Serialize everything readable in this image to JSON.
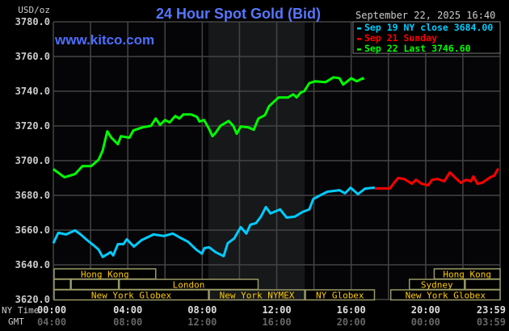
{
  "header": {
    "title": "24 Hour Spot Gold (Bid)",
    "watermark": "www.kitco.com",
    "unit": "USD/oz",
    "timestamp": "September 22, 2025 16:40"
  },
  "legend": [
    {
      "label": "Sep 19 NY close 3684.00",
      "color": "#00ccff"
    },
    {
      "label": "Sep 21 Sunday",
      "color": "#ff0000"
    },
    {
      "label": "Sep 22 Last 3746.60",
      "color": "#00ff00"
    }
  ],
  "colors": {
    "title": "#5577ff",
    "session_text": "#ffcc00",
    "session_border": "#999966",
    "grid": "#444444",
    "shade": "#16181a"
  },
  "chart_data": {
    "type": "line",
    "title": "24 Hour Spot Gold (Bid)",
    "ylabel": "USD/oz",
    "ylim": [
      3620,
      3780
    ],
    "yticks": [
      "3780.0",
      "3760.0",
      "3740.0",
      "3720.0",
      "3700.0",
      "3680.0",
      "3660.0",
      "3640.0",
      "3620.0"
    ],
    "xlim": [
      "00:00",
      "24:00"
    ],
    "grid": true,
    "legend_position": "top-right",
    "shaded_period": [
      "08:20",
      "13:30"
    ],
    "x_row_labels": {
      "ny": "NY Time",
      "gmt": "GMT"
    },
    "xticks": [
      {
        "ny": "00:00",
        "gmt": "04:00"
      },
      {
        "ny": "04:00",
        "gmt": "08:00"
      },
      {
        "ny": "08:00",
        "gmt": "12:00"
      },
      {
        "ny": "12:00",
        "gmt": "16:00"
      },
      {
        "ny": "16:00",
        "gmt": "20:00"
      },
      {
        "ny": "20:00",
        "gmt": "00:00"
      },
      {
        "ny": "23:59",
        "gmt": "03:59"
      }
    ],
    "series": [
      {
        "name": "Sep 19 NY close 3684.00",
        "color": "#00ccff",
        "points": [
          [
            "00:00",
            3652.4
          ],
          [
            "00:16",
            3658.4
          ],
          [
            "00:41",
            3657.5
          ],
          [
            "01:10",
            3659.8
          ],
          [
            "01:28",
            3657.5
          ],
          [
            "01:49",
            3654.2
          ],
          [
            "02:08",
            3651.5
          ],
          [
            "02:26",
            3648.7
          ],
          [
            "02:39",
            3644.5
          ],
          [
            "03:05",
            3647.3
          ],
          [
            "03:13",
            3645.4
          ],
          [
            "03:28",
            3651.9
          ],
          [
            "03:46",
            3651.9
          ],
          [
            "03:57",
            3654.7
          ],
          [
            "04:20",
            3650.5
          ],
          [
            "04:44",
            3654.2
          ],
          [
            "05:23",
            3657.5
          ],
          [
            "05:56",
            3656.6
          ],
          [
            "06:25",
            3658.0
          ],
          [
            "06:49",
            3655.6
          ],
          [
            "07:14",
            3653.3
          ],
          [
            "07:41",
            3648.7
          ],
          [
            "07:59",
            3646.4
          ],
          [
            "08:07",
            3649.6
          ],
          [
            "08:22",
            3650.1
          ],
          [
            "08:43",
            3647.3
          ],
          [
            "09:09",
            3645.0
          ],
          [
            "09:22",
            3652.4
          ],
          [
            "09:43",
            3655.2
          ],
          [
            "10:04",
            3661.7
          ],
          [
            "10:22",
            3658.0
          ],
          [
            "10:35",
            3663.1
          ],
          [
            "10:53",
            3664.0
          ],
          [
            "11:09",
            3667.7
          ],
          [
            "11:25",
            3673.3
          ],
          [
            "11:40",
            3669.6
          ],
          [
            "12:11",
            3671.9
          ],
          [
            "12:32",
            3667.2
          ],
          [
            "12:58",
            3667.7
          ],
          [
            "13:24",
            3670.5
          ],
          [
            "13:45",
            3671.9
          ],
          [
            "13:58",
            3677.9
          ],
          [
            "14:22",
            3680.2
          ],
          [
            "14:43",
            3682.1
          ],
          [
            "15:22",
            3683.0
          ],
          [
            "15:40",
            3681.2
          ],
          [
            "15:58",
            3684.4
          ],
          [
            "16:22",
            3680.7
          ],
          [
            "16:45",
            3683.9
          ],
          [
            "17:13",
            3684.4
          ],
          [
            "17:16",
            3684.0
          ]
        ]
      },
      {
        "name": "Sep 21 Sunday",
        "color": "#ff0000",
        "points": [
          [
            "17:16",
            3684.0
          ],
          [
            "18:05",
            3684.0
          ],
          [
            "18:16",
            3686.7
          ],
          [
            "18:31",
            3690.0
          ],
          [
            "18:50",
            3689.5
          ],
          [
            "19:16",
            3686.7
          ],
          [
            "19:29",
            3689.0
          ],
          [
            "19:47",
            3686.7
          ],
          [
            "20:08",
            3685.8
          ],
          [
            "20:21",
            3689.0
          ],
          [
            "20:39",
            3689.5
          ],
          [
            "21:00",
            3688.1
          ],
          [
            "21:18",
            3693.2
          ],
          [
            "21:34",
            3690.4
          ],
          [
            "21:54",
            3687.2
          ],
          [
            "22:10",
            3689.0
          ],
          [
            "22:26",
            3688.1
          ],
          [
            "22:34",
            3690.9
          ],
          [
            "22:47",
            3686.7
          ],
          [
            "23:02",
            3687.2
          ],
          [
            "23:28",
            3690.4
          ],
          [
            "23:41",
            3691.4
          ],
          [
            "23:54",
            3695.5
          ]
        ]
      },
      {
        "name": "Sep 22 Last 3746.60",
        "color": "#00ff00",
        "points": [
          [
            "00:00",
            3695.1
          ],
          [
            "00:36",
            3690.4
          ],
          [
            "01:10",
            3692.3
          ],
          [
            "01:34",
            3696.9
          ],
          [
            "02:02",
            3696.9
          ],
          [
            "02:26",
            3700.6
          ],
          [
            "02:39",
            3705.8
          ],
          [
            "02:54",
            3716.9
          ],
          [
            "03:07",
            3713.2
          ],
          [
            "03:28",
            3709.5
          ],
          [
            "03:38",
            3714.1
          ],
          [
            "04:05",
            3713.2
          ],
          [
            "04:18",
            3717.4
          ],
          [
            "04:48",
            3719.2
          ],
          [
            "05:15",
            3720.1
          ],
          [
            "05:30",
            3724.3
          ],
          [
            "05:44",
            3720.6
          ],
          [
            "06:00",
            3723.4
          ],
          [
            "06:15",
            3722.0
          ],
          [
            "06:33",
            3725.7
          ],
          [
            "06:46",
            3724.3
          ],
          [
            "06:59",
            3726.6
          ],
          [
            "07:24",
            3726.6
          ],
          [
            "07:43",
            3725.2
          ],
          [
            "07:51",
            3722.5
          ],
          [
            "08:06",
            3723.4
          ],
          [
            "08:22",
            3718.3
          ],
          [
            "08:33",
            3714.1
          ],
          [
            "08:43",
            3716.0
          ],
          [
            "08:59",
            3720.1
          ],
          [
            "09:25",
            3722.9
          ],
          [
            "09:40",
            3720.1
          ],
          [
            "09:51",
            3715.5
          ],
          [
            "10:04",
            3719.7
          ],
          [
            "10:28",
            3719.2
          ],
          [
            "10:46",
            3717.8
          ],
          [
            "11:01",
            3724.3
          ],
          [
            "11:22",
            3726.2
          ],
          [
            "11:35",
            3731.3
          ],
          [
            "12:06",
            3736.4
          ],
          [
            "12:37",
            3736.4
          ],
          [
            "12:53",
            3738.2
          ],
          [
            "13:04",
            3736.4
          ],
          [
            "13:17",
            3739.2
          ],
          [
            "13:29",
            3740.1
          ],
          [
            "13:45",
            3744.7
          ],
          [
            "14:04",
            3745.7
          ],
          [
            "14:37",
            3745.2
          ],
          [
            "15:03",
            3748.0
          ],
          [
            "15:22",
            3747.5
          ],
          [
            "15:34",
            3743.8
          ],
          [
            "16:00",
            3747.5
          ],
          [
            "16:18",
            3745.7
          ],
          [
            "16:37",
            3747.5
          ],
          [
            "16:40",
            3746.6
          ]
        ]
      }
    ],
    "sessions": [
      {
        "row": 0,
        "start": "00:00",
        "end": "05:30",
        "label": "Hong Kong"
      },
      {
        "row": 0,
        "start": "20:25",
        "end": "24:00",
        "label": "Hong Kong"
      },
      {
        "row": 1,
        "start": "00:00",
        "end": "00:55",
        "label": ""
      },
      {
        "row": 1,
        "start": "00:55",
        "end": "03:30",
        "label": ""
      },
      {
        "row": 1,
        "start": "03:30",
        "end": "11:00",
        "label": "London"
      },
      {
        "row": 1,
        "start": "19:05",
        "end": "22:05",
        "label": "Sydney"
      },
      {
        "row": 1,
        "start": "22:05",
        "end": "24:00",
        "label": ""
      },
      {
        "row": 2,
        "start": "00:00",
        "end": "08:20",
        "label": "New York Globex"
      },
      {
        "row": 2,
        "start": "08:20",
        "end": "13:30",
        "label": "New York NYMEX"
      },
      {
        "row": 2,
        "start": "13:30",
        "end": "17:15",
        "label": "NY Globex"
      },
      {
        "row": 2,
        "start": "18:05",
        "end": "24:00",
        "label": "New York Globex"
      }
    ]
  }
}
